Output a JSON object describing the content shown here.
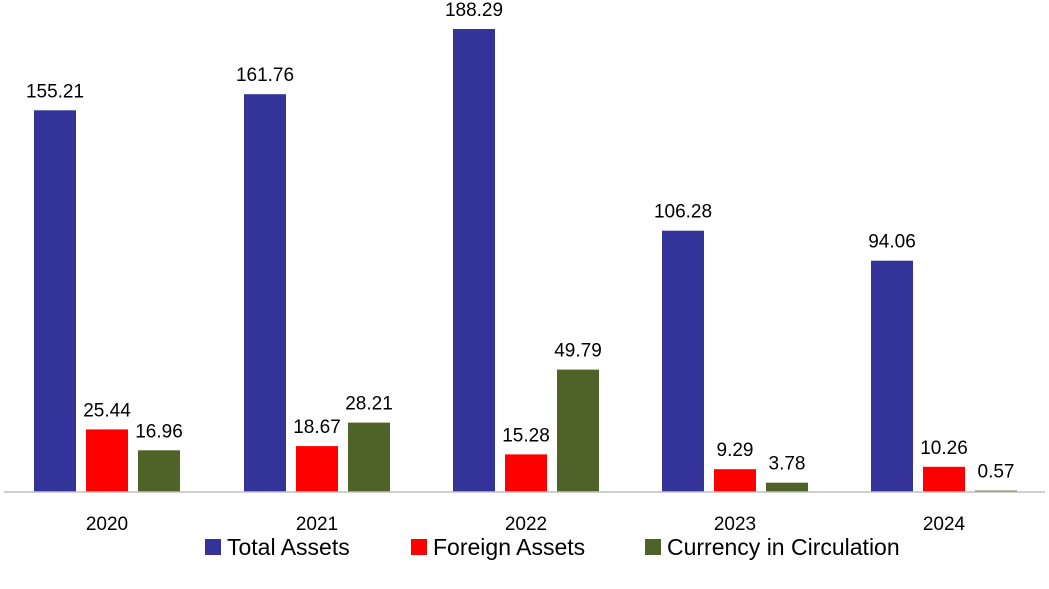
{
  "chart_data": {
    "type": "bar",
    "categories": [
      "2020",
      "2021",
      "2022",
      "2023",
      "2024"
    ],
    "series": [
      {
        "name": "Total Assets",
        "values": [
          155.21,
          161.76,
          188.29,
          106.28,
          94.06
        ],
        "color": "#333399"
      },
      {
        "name": "Foreign Assets",
        "values": [
          25.44,
          18.67,
          15.28,
          9.29,
          10.26
        ],
        "color": "#ff0000"
      },
      {
        "name": "Currency in Circulation",
        "values": [
          16.96,
          28.21,
          49.79,
          3.78,
          0.57
        ],
        "color": "#4f6228"
      }
    ],
    "value_labels": [
      [
        "155.21",
        "161.76",
        "188.29",
        "106.28",
        "94.06"
      ],
      [
        "25.44",
        "18.67",
        "15.28",
        "9.29",
        "10.26"
      ],
      [
        "16.96",
        "28.21",
        "49.79",
        "3.78",
        "0.57"
      ]
    ],
    "ylim": [
      0,
      188.29
    ],
    "grid": false,
    "legend_position": "bottom"
  }
}
